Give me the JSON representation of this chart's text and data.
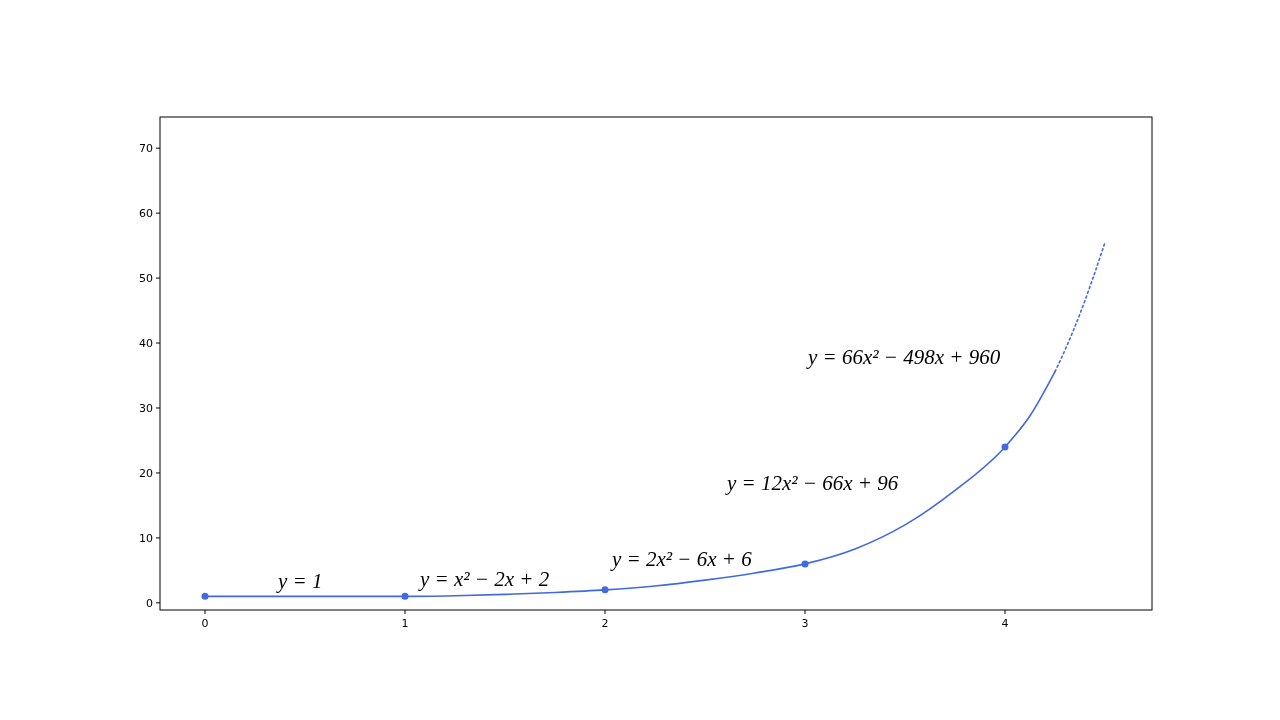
{
  "chart_data": {
    "type": "line",
    "xlim": [
      -0.225,
      4.735
    ],
    "ylim": [
      -1.1,
      74.8
    ],
    "xticks": [
      0,
      1,
      2,
      3,
      4
    ],
    "yticks": [
      0,
      10,
      20,
      30,
      40,
      50,
      60,
      70
    ],
    "grid": false,
    "series": [
      {
        "type": "line",
        "color": "#4169e1",
        "line_style": "solid",
        "marker": "none",
        "x": [
          0,
          0.5,
          1,
          1.25,
          1.5,
          1.75,
          2,
          2.25,
          2.5,
          2.75,
          3,
          3.25,
          3.5,
          3.75,
          4,
          4.125,
          4.25
        ],
        "values": [
          1,
          1,
          1,
          1.1,
          1.3,
          1.6,
          2,
          2.6,
          3.5,
          4.6,
          6,
          8.3,
          12,
          17.3,
          24,
          28.8,
          35.6
        ]
      },
      {
        "type": "line",
        "color": "#4169e1",
        "line_style": "dotted",
        "marker": "none",
        "x": [
          4.25,
          4.3125,
          4.375,
          4.4375,
          4.5
        ],
        "values": [
          35.6,
          39.8,
          44.5,
          49.8,
          55.5
        ]
      },
      {
        "type": "scatter",
        "color": "#4169e1",
        "marker": "circle",
        "x": [
          0,
          1,
          2,
          3,
          4
        ],
        "values": [
          1,
          1,
          2,
          6,
          24
        ]
      }
    ],
    "annotations": [
      "y = 1",
      "y = x² − 2x + 2",
      "y = 2x² − 6x + 6",
      "y = 12x² − 66x + 96",
      "y = 66x² − 498x + 960"
    ]
  }
}
